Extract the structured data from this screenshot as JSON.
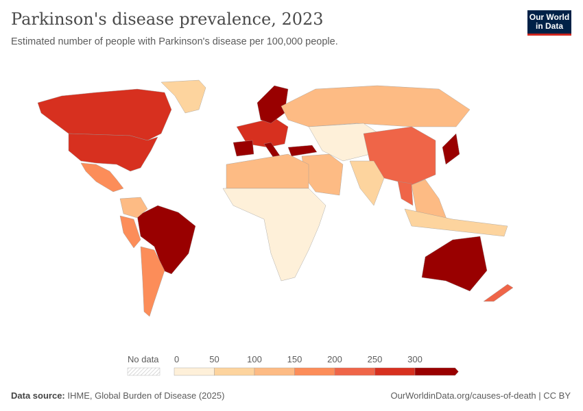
{
  "header": {
    "title": "Parkinson's disease prevalence, 2023",
    "subtitle": "Estimated number of people with Parkinson's disease per 100,000 people.",
    "logo": "Our World in Data"
  },
  "legend": {
    "no_data_label": "No data",
    "ticks": [
      "0",
      "50",
      "100",
      "150",
      "200",
      "250",
      "300"
    ],
    "bins": [
      {
        "range": "0–50",
        "color": "#fef0d9"
      },
      {
        "range": "50–100",
        "color": "#fdd49e"
      },
      {
        "range": "100–150",
        "color": "#fdbb84"
      },
      {
        "range": "150–200",
        "color": "#fc8d59"
      },
      {
        "range": "200–250",
        "color": "#ef6548"
      },
      {
        "range": "250–300",
        "color": "#d7301f"
      },
      {
        "range": ">300",
        "color": "#990000"
      }
    ],
    "no_data_color": "#e8e8e8"
  },
  "map_data": {
    "regions": [
      {
        "name": "Canada",
        "bin": 5
      },
      {
        "name": "United States",
        "bin": 5
      },
      {
        "name": "Mexico",
        "bin": 3
      },
      {
        "name": "Greenland",
        "bin": 1
      },
      {
        "name": "Brazil",
        "bin": 6
      },
      {
        "name": "Argentina",
        "bin": 3
      },
      {
        "name": "Colombia",
        "bin": 2
      },
      {
        "name": "Peru",
        "bin": 3
      },
      {
        "name": "Western Europe",
        "bin": 5
      },
      {
        "name": "Spain",
        "bin": 6
      },
      {
        "name": "Italy",
        "bin": 6
      },
      {
        "name": "Sweden",
        "bin": 6
      },
      {
        "name": "Turkey",
        "bin": 6
      },
      {
        "name": "Russia",
        "bin": 2
      },
      {
        "name": "Central Asia",
        "bin": 0
      },
      {
        "name": "China",
        "bin": 4
      },
      {
        "name": "Japan",
        "bin": 6
      },
      {
        "name": "India",
        "bin": 1
      },
      {
        "name": "Middle East",
        "bin": 2
      },
      {
        "name": "North Africa",
        "bin": 2
      },
      {
        "name": "Sub-Saharan Africa",
        "bin": 0
      },
      {
        "name": "Southeast Asia",
        "bin": 2
      },
      {
        "name": "Thailand",
        "bin": 4
      },
      {
        "name": "Indonesia",
        "bin": 1
      },
      {
        "name": "Australia",
        "bin": 6
      },
      {
        "name": "New Zealand",
        "bin": 4
      }
    ]
  },
  "footer": {
    "source_label": "Data source:",
    "source": "IHME, Global Burden of Disease (2025)",
    "link": "OurWorldinData.org/causes-of-death | CC BY"
  }
}
